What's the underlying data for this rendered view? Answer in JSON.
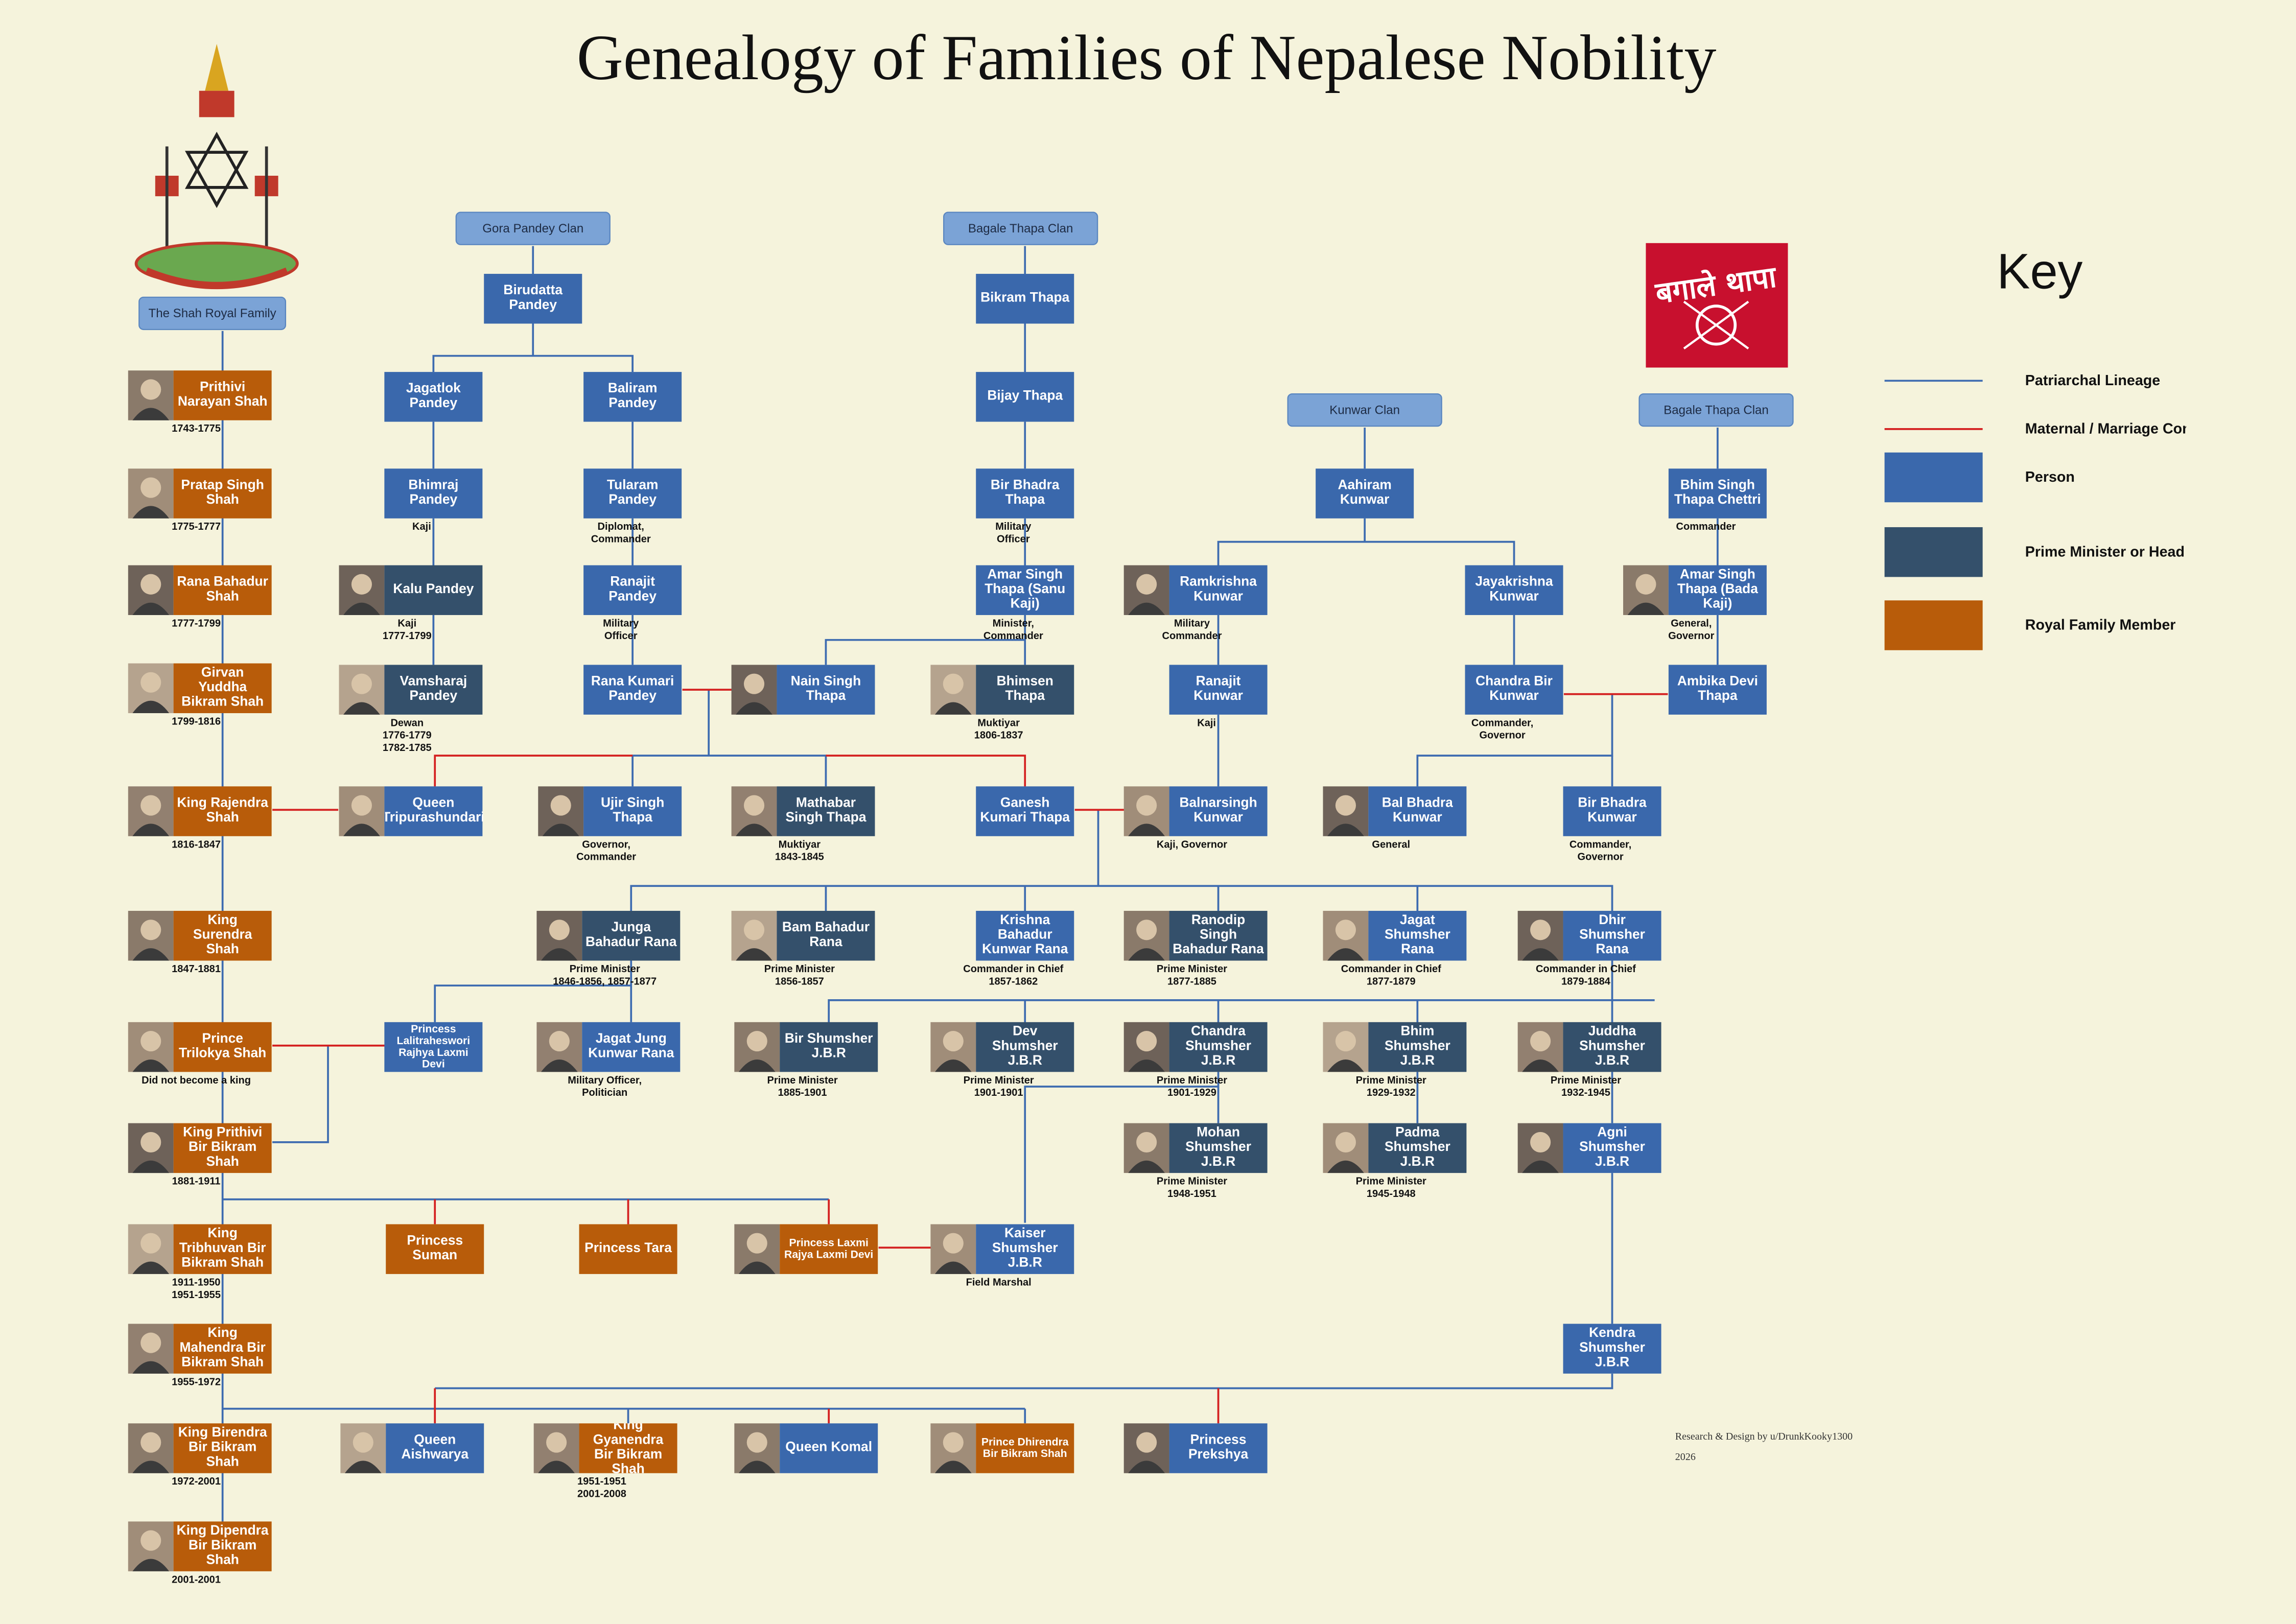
{
  "title": "Genealogy of Families of Nepalese Nobility",
  "flag_text": "बगाले थापा",
  "clans": [
    {
      "label": "The Shah Royal Family"
    },
    {
      "label": "Gora Pandey Clan"
    },
    {
      "label": "Bagale Thapa Clan"
    },
    {
      "label": "Kunwar Clan"
    },
    {
      "label": "Bagale Thapa Clan"
    }
  ],
  "nodes": [
    {
      "label": "Prithivi Narayan Shah",
      "kind": "royal",
      "photo": true,
      "note": [
        "1743-1775"
      ]
    },
    {
      "label": "Pratap Singh Shah",
      "kind": "royal",
      "photo": true,
      "note": [
        "1775-1777"
      ]
    },
    {
      "label": "Rana Bahadur Shah",
      "kind": "royal",
      "photo": true,
      "note": [
        "1777-1799"
      ]
    },
    {
      "label": "Girvan Yuddha Bikram Shah",
      "kind": "royal",
      "photo": true,
      "note": [
        "1799-1816"
      ]
    },
    {
      "label": "King Rajendra Shah",
      "kind": "royal",
      "photo": true,
      "note": [
        "1816-1847"
      ]
    },
    {
      "label": "King Surendra Shah",
      "kind": "royal",
      "photo": true,
      "note": [
        "1847-1881"
      ]
    },
    {
      "label": "Prince Trilokya Shah",
      "kind": "royal",
      "photo": true,
      "note": [
        "Did not become a king"
      ]
    },
    {
      "label": "King Prithivi Bir Bikram Shah",
      "kind": "royal",
      "photo": true,
      "note": [
        "1881-1911"
      ]
    },
    {
      "label": "King Tribhuvan Bir Bikram Shah",
      "kind": "royal",
      "photo": true,
      "note": [
        "1911-1950",
        "1951-1955"
      ]
    },
    {
      "label": "King Mahendra Bir Bikram Shah",
      "kind": "royal",
      "photo": true,
      "note": [
        "1955-1972"
      ]
    },
    {
      "label": "King Birendra Bir Bikram Shah",
      "kind": "royal",
      "photo": true,
      "note": [
        "1972-2001"
      ]
    },
    {
      "label": "King Dipendra Bir Bikram Shah",
      "kind": "royal",
      "photo": true,
      "note": [
        "2001-2001"
      ]
    },
    {
      "label": "Birudatta Pandey",
      "kind": "person"
    },
    {
      "label": "Jagatlok Pandey",
      "kind": "person"
    },
    {
      "label": "Baliram Pandey",
      "kind": "person"
    },
    {
      "label": "Bhimraj Pandey",
      "kind": "person",
      "note": [
        "Kaji"
      ]
    },
    {
      "label": "Tularam Pandey",
      "kind": "person",
      "note": [
        "Diplomat,",
        "Commander"
      ]
    },
    {
      "label": "Kalu Pandey",
      "kind": "pm",
      "photo": true,
      "note": [
        "Kaji",
        "1777-1799"
      ]
    },
    {
      "label": "Vamsharaj Pandey",
      "kind": "pm",
      "photo": true,
      "note": [
        "Dewan",
        "1776-1779",
        "1782-1785"
      ]
    },
    {
      "label": "Ranajit Pandey",
      "kind": "person",
      "note": [
        "Military",
        "Officer"
      ]
    },
    {
      "label": "Rana Kumari Pandey",
      "kind": "person"
    },
    {
      "label": "Queen Tripurashundari",
      "kind": "person",
      "photo": true
    },
    {
      "label": "Ujir Singh Thapa",
      "kind": "person",
      "photo": true,
      "note": [
        "Governor,",
        "Commander"
      ]
    },
    {
      "label": "Bikram Thapa",
      "kind": "person"
    },
    {
      "label": "Bijay Thapa",
      "kind": "person"
    },
    {
      "label": "Bir Bhadra Thapa",
      "kind": "person",
      "note": [
        "Military",
        "Officer"
      ]
    },
    {
      "label": "Amar Singh Thapa (Sanu Kaji)",
      "kind": "person",
      "note": [
        "Minister,",
        "Commander"
      ]
    },
    {
      "label": "Nain Singh Thapa",
      "kind": "person",
      "photo": true
    },
    {
      "label": "Bhimsen Thapa",
      "kind": "pm",
      "photo": true,
      "note": [
        "Muktiyar",
        "1806-1837"
      ]
    },
    {
      "label": "Mathabar Singh Thapa",
      "kind": "pm",
      "photo": true,
      "note": [
        "Muktiyar",
        "1843-1845"
      ]
    },
    {
      "label": "Ganesh Kumari Thapa",
      "kind": "person"
    },
    {
      "label": "Aahiram Kunwar",
      "kind": "person"
    },
    {
      "label": "Ramkrishna Kunwar",
      "kind": "person",
      "photo": true,
      "note": [
        "Military",
        "Commander"
      ]
    },
    {
      "label": "Jayakrishna Kunwar",
      "kind": "person"
    },
    {
      "label": "Ranajit Kunwar",
      "kind": "person",
      "note": [
        "Kaji"
      ]
    },
    {
      "label": "Chandra Bir Kunwar",
      "kind": "person",
      "note": [
        "Commander,",
        "Governor"
      ]
    },
    {
      "label": "Balnarsingh Kunwar",
      "kind": "person",
      "photo": true,
      "note": [
        "Kaji, Governor"
      ]
    },
    {
      "label": "Bal  Bhadra Kunwar",
      "kind": "person",
      "photo": true,
      "note": [
        "General"
      ]
    },
    {
      "label": "Bir Bhadra Kunwar",
      "kind": "person",
      "note": [
        "Commander,",
        "Governor"
      ]
    },
    {
      "label": "Bhim Singh Thapa Chettri",
      "kind": "person",
      "note": [
        "Commander"
      ]
    },
    {
      "label": "Amar Singh Thapa (Bada Kaji)",
      "kind": "person",
      "photo": true,
      "note": [
        "General,",
        "Governor"
      ]
    },
    {
      "label": "Ambika Devi Thapa",
      "kind": "person"
    },
    {
      "label": "Junga Bahadur Rana",
      "kind": "pm",
      "photo": true,
      "note": [
        "Prime Minister",
        "1846-1856, 1857-1877"
      ]
    },
    {
      "label": "Bam Bahadur Rana",
      "kind": "pm",
      "photo": true,
      "note": [
        "Prime Minister",
        "1856-1857"
      ]
    },
    {
      "label": "Krishna Bahadur Kunwar Rana",
      "kind": "person",
      "note": [
        "Commander in Chief",
        "1857-1862"
      ]
    },
    {
      "label": "Ranodip Singh Bahadur Rana",
      "kind": "pm",
      "photo": true,
      "note": [
        "Prime Minister",
        "1877-1885"
      ]
    },
    {
      "label": "Jagat Shumsher Rana",
      "kind": "person",
      "photo": true,
      "note": [
        "Commander in Chief",
        "1877-1879"
      ]
    },
    {
      "label": "Dhir Shumsher Rana",
      "kind": "person",
      "photo": true,
      "note": [
        "Commander in Chief",
        "1879-1884"
      ]
    },
    {
      "label": "Princess Lalitraheswori Rajhya Laxmi Devi",
      "kind": "person"
    },
    {
      "label": "Jagat Jung Kunwar Rana",
      "kind": "person",
      "photo": true,
      "note": [
        "Military Officer,",
        "Politician"
      ]
    },
    {
      "label": "Bir Shumsher J.B.R",
      "kind": "pm",
      "photo": true,
      "note": [
        "Prime Minister",
        "1885-1901"
      ]
    },
    {
      "label": "Dev Shumsher J.B.R",
      "kind": "pm",
      "photo": true,
      "note": [
        "Prime Minister",
        "1901-1901"
      ]
    },
    {
      "label": "Chandra Shumsher J.B.R",
      "kind": "pm",
      "photo": true,
      "note": [
        "Prime Minister",
        "1901-1929"
      ]
    },
    {
      "label": "Bhim Shumsher J.B.R",
      "kind": "pm",
      "photo": true,
      "note": [
        "Prime Minister",
        "1929-1932"
      ]
    },
    {
      "label": "Juddha Shumsher J.B.R",
      "kind": "pm",
      "photo": true,
      "note": [
        "Prime Minister",
        "1932-1945"
      ]
    },
    {
      "label": "Mohan Shumsher J.B.R",
      "kind": "pm",
      "photo": true,
      "note": [
        "Prime Minister",
        "1948-1951"
      ]
    },
    {
      "label": "Padma Shumsher J.B.R",
      "kind": "pm",
      "photo": true,
      "note": [
        "Prime Minister",
        "1945-1948"
      ]
    },
    {
      "label": "Agni Shumsher J.B.R",
      "kind": "person",
      "photo": true
    },
    {
      "label": "Princess Suman",
      "kind": "royal"
    },
    {
      "label": "Princess Tara",
      "kind": "royal"
    },
    {
      "label": "Princess Laxmi Rajya Laxmi Devi",
      "kind": "royal",
      "photo": true
    },
    {
      "label": "Kaiser Shumsher J.B.R",
      "kind": "person",
      "photo": true,
      "note": [
        "Field Marshal"
      ]
    },
    {
      "label": "Kendra Shumsher J.B.R",
      "kind": "person"
    },
    {
      "label": "Queen Aishwarya",
      "kind": "person",
      "photo": true
    },
    {
      "label": "King Gyanendra Bir Bikram Shah",
      "kind": "royal",
      "photo": true,
      "note": [
        "1951-1951",
        "2001-2008"
      ]
    },
    {
      "label": "Queen Komal",
      "kind": "person",
      "photo": true
    },
    {
      "label": "Prince Dhirendra Bir Bikram Shah",
      "kind": "royal",
      "photo": true
    },
    {
      "label": "Princess Prekshya",
      "kind": "person",
      "photo": true
    }
  ],
  "key": {
    "title": "Key",
    "items": [
      {
        "label": "Patriarchal Lineage",
        "kind": "patriarchal"
      },
      {
        "label": "Maternal / Marriage Connection",
        "kind": "maternal"
      },
      {
        "label": "Person",
        "kind": "person"
      },
      {
        "label": "Prime Minister or Head of State",
        "kind": "pm"
      },
      {
        "label": "Royal Family Member",
        "kind": "royal"
      }
    ]
  },
  "credit": {
    "text": "Research & Design by u/DrunkKooky1300",
    "year": "2026"
  }
}
